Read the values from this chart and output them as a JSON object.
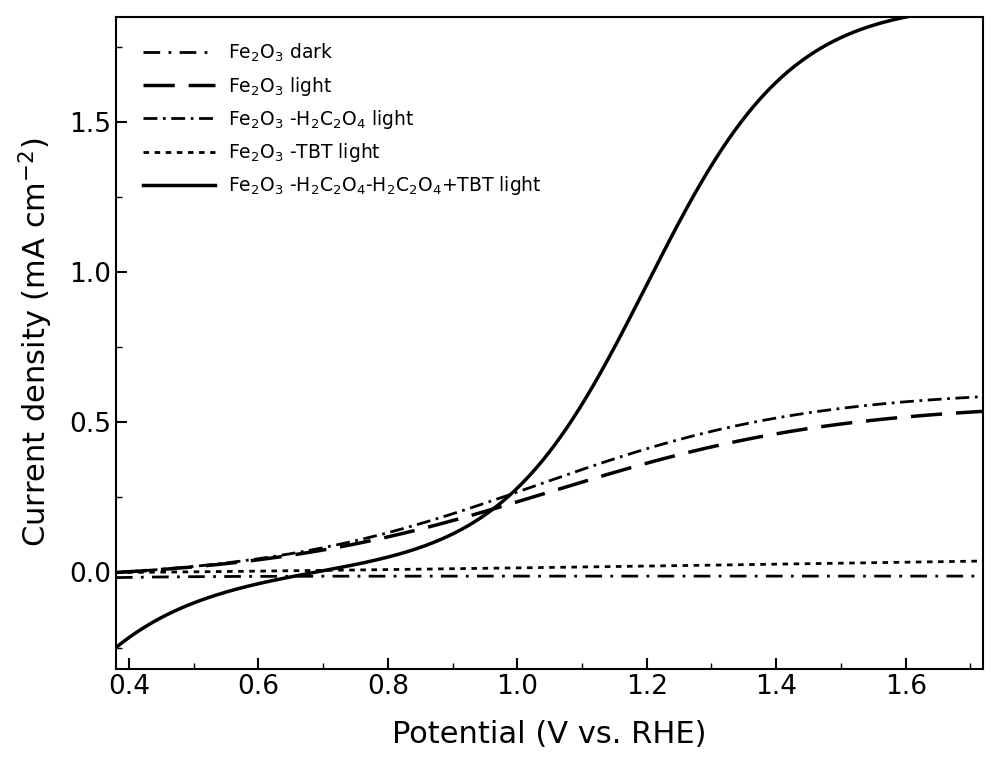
{
  "title": "",
  "xlabel": "Potential (V vs. RHE)",
  "ylabel": "Current density (mA cm$^{-2}$)",
  "xlim": [
    0.38,
    1.72
  ],
  "ylim": [
    -0.32,
    1.85
  ],
  "xticks": [
    0.4,
    0.6,
    0.8,
    1.0,
    1.2,
    1.4,
    1.6
  ],
  "yticks": [
    0.0,
    0.5,
    1.0,
    1.5
  ],
  "background_color": "#ffffff",
  "line_color": "#000000",
  "legend_labels": [
    "Fe$_2$O$_3$ dark",
    "Fe$_2$O$_3$ light",
    "Fe$_2$O$_3$ -H$_2$C$_2$O$_4$ light",
    "Fe$_2$O$_3$ -TBT light",
    "Fe$_2$O$_3$ -H$_2$C$_2$O$_4$-H$_2$C$_2$O$_4$+TBT light"
  ]
}
